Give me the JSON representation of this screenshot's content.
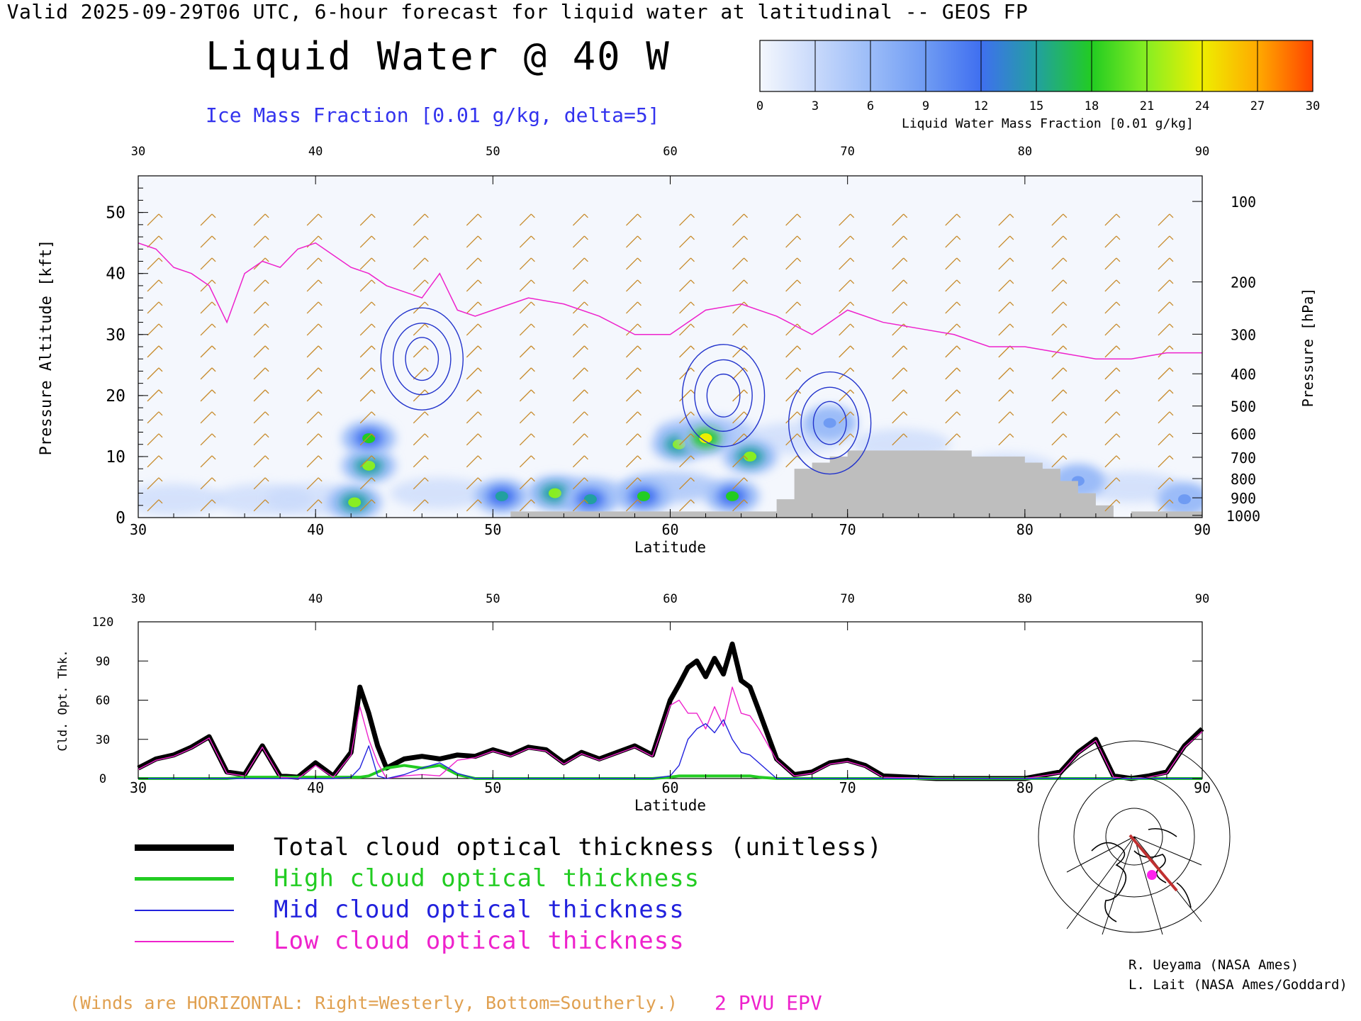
{
  "header": {
    "title": "Valid 2025-09-29T06 UTC, 6-hour forecast for liquid water at latitudinal -- GEOS FP",
    "subtitle": "Liquid Water @ 40 W",
    "ice_label": "Ice Mass Fraction [0.01 g/kg, delta=5]"
  },
  "colorbar": {
    "label": "Liquid Water Mass Fraction [0.01 g/kg]",
    "ticks": [
      "0",
      "3",
      "6",
      "9",
      "12",
      "15",
      "18",
      "21",
      "24",
      "27",
      "30"
    ],
    "colors": [
      "#f4f7fd",
      "#c8d9fb",
      "#9bbcf8",
      "#6f9bf3",
      "#3f6ff0",
      "#22a0a0",
      "#22cc22",
      "#88ee22",
      "#eeee00",
      "#ffaa00",
      "#ff4400"
    ]
  },
  "chart_data": [
    {
      "type": "heatmap",
      "title": "Liquid Water @ 40 W",
      "xlabel": "Latitude",
      "ylabel": "Pressure Altitude [kft]",
      "y2label": "Pressure [hPa]",
      "xlim": [
        30,
        90
      ],
      "ylim": [
        0,
        56
      ],
      "x_ticks": [
        "30",
        "40",
        "50",
        "60",
        "70",
        "80",
        "90"
      ],
      "y_ticks": [
        "0",
        "10",
        "20",
        "30",
        "40",
        "50"
      ],
      "y2_ticks": [
        "100",
        "200",
        "300",
        "400",
        "500",
        "600",
        "700",
        "800",
        "900",
        "1000"
      ],
      "epv_2pvu_line": {
        "lat": [
          30,
          31,
          32,
          33,
          34,
          35,
          36,
          37,
          38,
          39,
          40,
          41,
          42,
          43,
          44,
          45,
          46,
          47,
          48,
          49,
          50,
          52,
          54,
          56,
          58,
          60,
          62,
          64,
          66,
          68,
          70,
          72,
          74,
          76,
          78,
          80,
          82,
          84,
          86,
          88,
          90
        ],
        "kft": [
          45,
          44,
          41,
          40,
          38,
          32,
          40,
          42,
          41,
          44,
          45,
          43,
          41,
          40,
          38,
          37,
          36,
          40,
          34,
          33,
          34,
          36,
          35,
          33,
          30,
          30,
          34,
          35,
          33,
          30,
          34,
          32,
          31,
          30,
          28,
          28,
          27,
          26,
          26,
          27,
          27
        ]
      },
      "terrain": {
        "lat": [
          30,
          50,
          51,
          65,
          66,
          67,
          68,
          69,
          70,
          71,
          72,
          73,
          74,
          75,
          76,
          77,
          78,
          79,
          80,
          81,
          82,
          83,
          84,
          85,
          86,
          87,
          88,
          89,
          90
        ],
        "kft": [
          0,
          0,
          1,
          1,
          3,
          8,
          9,
          10,
          11,
          11,
          11,
          11,
          11,
          11,
          11,
          10,
          10,
          10,
          9,
          8,
          6,
          4,
          2,
          0,
          1,
          1,
          1,
          1,
          1
        ]
      },
      "liquid_water_blobs": [
        {
          "lat": 42.2,
          "kft": 2.5,
          "value": 20
        },
        {
          "lat": 43.0,
          "kft": 8.5,
          "value": 21
        },
        {
          "lat": 43.0,
          "kft": 13.0,
          "value": 18
        },
        {
          "lat": 50.5,
          "kft": 3.5,
          "value": 15
        },
        {
          "lat": 53.5,
          "kft": 4.0,
          "value": 20
        },
        {
          "lat": 55.5,
          "kft": 3.0,
          "value": 16
        },
        {
          "lat": 58.5,
          "kft": 3.5,
          "value": 17
        },
        {
          "lat": 60.5,
          "kft": 12.0,
          "value": 21
        },
        {
          "lat": 62.0,
          "kft": 13.0,
          "value": 24
        },
        {
          "lat": 64.5,
          "kft": 10.0,
          "value": 22
        },
        {
          "lat": 63.5,
          "kft": 3.5,
          "value": 18
        },
        {
          "lat": 69.0,
          "kft": 15.5,
          "value": 8
        },
        {
          "lat": 83.0,
          "kft": 6.0,
          "value": 8
        },
        {
          "lat": 89.0,
          "kft": 3.0,
          "value": 9
        }
      ],
      "ice_contours": [
        {
          "lat": 46.0,
          "kft": 26,
          "value": 5
        },
        {
          "lat": 63.0,
          "kft": 20,
          "value": 5
        },
        {
          "lat": 69.0,
          "kft": 15.5,
          "value": 5
        }
      ]
    },
    {
      "type": "line",
      "xlabel": "Latitude",
      "ylabel": "Cld. Opt. Thk.",
      "xlim": [
        30,
        90
      ],
      "ylim": [
        0,
        120
      ],
      "x_ticks": [
        "30",
        "40",
        "50",
        "60",
        "70",
        "80",
        "90"
      ],
      "y_ticks": [
        "0",
        "30",
        "60",
        "90",
        "120"
      ],
      "x": [
        30,
        31,
        32,
        33,
        34,
        35,
        36,
        37,
        38,
        39,
        40,
        41,
        42,
        42.5,
        43,
        43.5,
        44,
        45,
        46,
        47,
        48,
        49,
        50,
        51,
        52,
        53,
        54,
        55,
        56,
        57,
        58,
        59,
        60,
        60.5,
        61,
        61.5,
        62,
        62.5,
        63,
        63.5,
        64,
        64.5,
        65,
        66,
        67,
        68,
        69,
        70,
        71,
        72,
        75,
        80,
        82,
        83,
        84,
        85,
        86,
        87,
        88,
        89,
        90
      ],
      "series": [
        {
          "name": "Total cloud optical thickness (unitless)",
          "color": "#000000",
          "values": [
            8,
            15,
            18,
            24,
            32,
            5,
            3,
            25,
            2,
            1,
            12,
            2,
            20,
            70,
            50,
            25,
            8,
            15,
            17,
            15,
            18,
            17,
            22,
            18,
            24,
            22,
            12,
            20,
            15,
            20,
            25,
            18,
            60,
            72,
            85,
            90,
            78,
            92,
            80,
            103,
            75,
            70,
            52,
            15,
            3,
            5,
            12,
            14,
            10,
            2,
            0,
            0,
            5,
            20,
            30,
            2,
            0,
            2,
            5,
            25,
            38
          ]
        },
        {
          "name": "High cloud optical thickness",
          "color": "#22cc22",
          "values": [
            0,
            0,
            0,
            0,
            0,
            0,
            1,
            1,
            1,
            1,
            1,
            1,
            1,
            1,
            2,
            5,
            8,
            10,
            8,
            10,
            3,
            0,
            0,
            0,
            0,
            0,
            0,
            0,
            0,
            0,
            0,
            0,
            1,
            2,
            2,
            2,
            2,
            2,
            2,
            2,
            2,
            2,
            1,
            0,
            0,
            0,
            0,
            0,
            0,
            0,
            0,
            0,
            0,
            0,
            0,
            0,
            0,
            0,
            0,
            0,
            0
          ]
        },
        {
          "name": "Mid cloud optical thickness",
          "color": "#2222dd",
          "values": [
            0,
            0,
            0,
            0,
            0,
            0,
            0,
            0,
            0,
            0,
            0,
            0,
            1,
            8,
            25,
            2,
            0,
            3,
            8,
            12,
            4,
            0,
            0,
            0,
            0,
            0,
            0,
            0,
            0,
            0,
            0,
            0,
            2,
            10,
            30,
            38,
            42,
            35,
            45,
            30,
            20,
            18,
            12,
            0,
            0,
            0,
            0,
            0,
            0,
            0,
            0,
            0,
            0,
            0,
            0,
            0,
            0,
            0,
            0,
            0,
            0
          ]
        },
        {
          "name": "Low cloud optical thickness",
          "color": "#ee22cc",
          "values": [
            7,
            14,
            17,
            23,
            31,
            4,
            2,
            24,
            1,
            0,
            10,
            1,
            18,
            55,
            30,
            12,
            0,
            2,
            3,
            2,
            14,
            16,
            21,
            17,
            23,
            21,
            11,
            19,
            14,
            19,
            24,
            17,
            56,
            60,
            50,
            50,
            38,
            55,
            40,
            70,
            50,
            48,
            38,
            14,
            2,
            4,
            11,
            13,
            9,
            1,
            0,
            0,
            4,
            19,
            29,
            1,
            0,
            1,
            4,
            24,
            36
          ]
        }
      ]
    }
  ],
  "legend": {
    "items": [
      {
        "label": "Total cloud optical thickness (unitless)",
        "color": "#000000"
      },
      {
        "label": "High cloud optical thickness",
        "color": "#22cc22"
      },
      {
        "label": "Mid cloud optical thickness",
        "color": "#2222dd"
      },
      {
        "label": "Low cloud optical thickness",
        "color": "#ee22cc"
      }
    ]
  },
  "notes": {
    "winds": "(Winds are HORIZONTAL: Right=Westerly, Bottom=Southerly.)",
    "pvu": "2 PVU EPV"
  },
  "credits": {
    "line1": "R. Ueyama (NASA Ames)",
    "line2": "L. Lait (NASA Ames/Goddard)"
  },
  "colors": {
    "wind_barbs": "#c78a2a",
    "terrain": "#bebebe",
    "epv": "#ee22cc",
    "ice_contour": "#2233cc",
    "map_track": "#c03030",
    "map_marker": "#ff22ee"
  }
}
